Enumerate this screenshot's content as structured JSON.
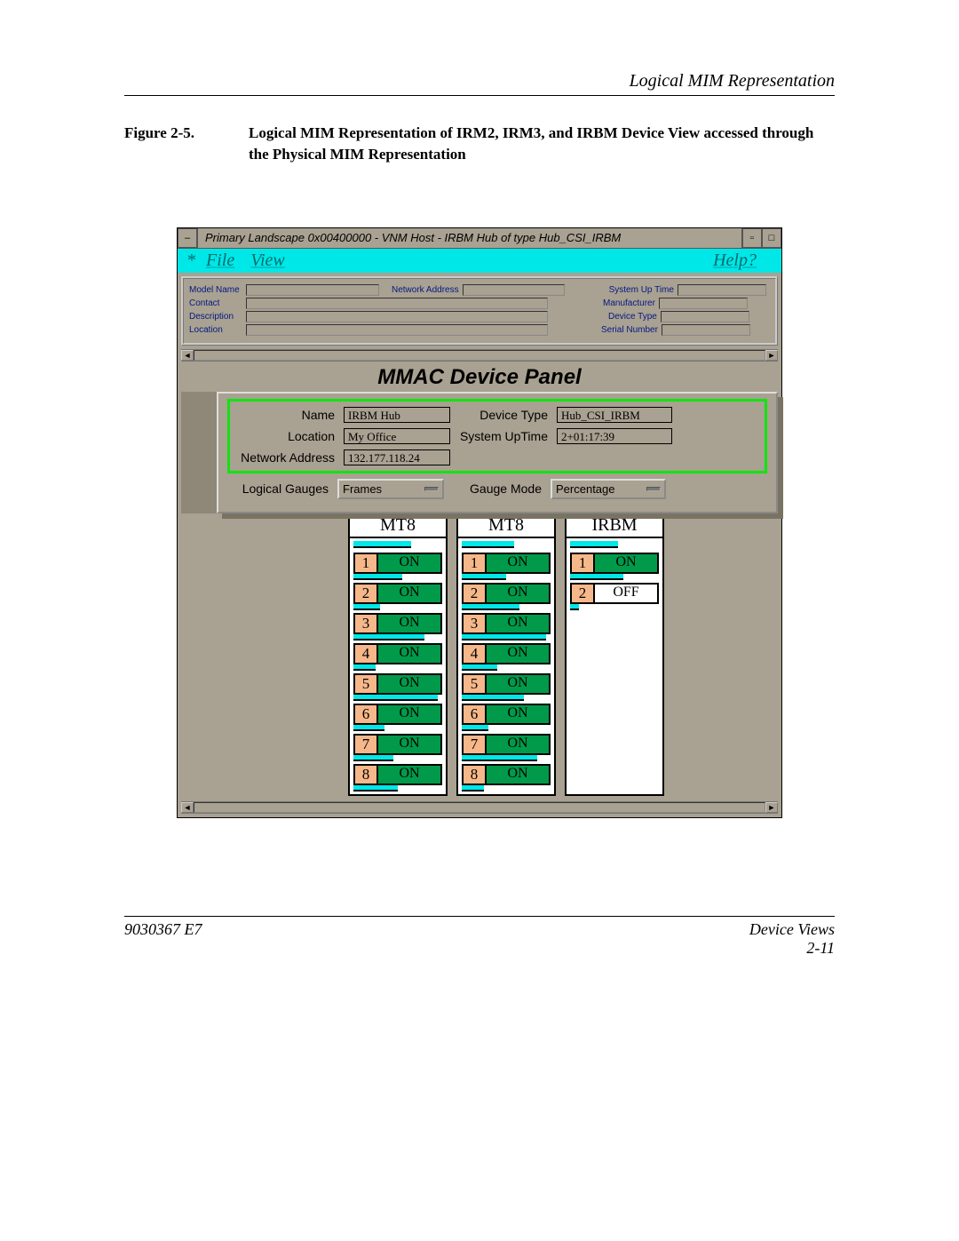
{
  "page": {
    "section_header": "Logical MIM Representation",
    "figure_label": "Figure 2-5.",
    "figure_text": "Logical MIM Representation of IRM2, IRM3, and IRBM Device View accessed through the Physical MIM Representation",
    "footer_left": "9030367 E7",
    "footer_right_top": "Device Views",
    "footer_right_bottom": "2-11"
  },
  "window": {
    "title": "Primary Landscape 0x00400000 - VNM Host - IRBM Hub of type Hub_CSI_IRBM",
    "menu": {
      "file": "File",
      "view": "View",
      "help": "Help?"
    },
    "info_labels": {
      "model_name": "Model Name",
      "network_address": "Network Address",
      "system_up_time": "System Up Time",
      "contact": "Contact",
      "manufacturer": "Manufacturer",
      "description": "Description",
      "device_type": "Device Type",
      "location": "Location",
      "serial_number": "Serial Number"
    },
    "panel_title": "MMAC Device Panel",
    "info_colors": {
      "label": "#041984"
    },
    "device": {
      "labels": {
        "name": "Name",
        "location": "Location",
        "netaddr": "Network Address",
        "devtype": "Device Type",
        "uptime": "System UpTime"
      },
      "name": "IRBM Hub",
      "location": "My Office",
      "network_address": "132.177.118.24",
      "device_type": "Hub_CSI_IRBM",
      "system_uptime": "2+01:17:39"
    },
    "controls": {
      "logical_gauges_label": "Logical Gauges",
      "logical_gauges_value": "Frames",
      "gauge_mode_label": "Gauge Mode",
      "gauge_mode_value": "Percentage"
    },
    "colors": {
      "menubar_bg": "#00e7e7",
      "menubar_fg": "#006c6c",
      "green_frame": "#12e312",
      "on_bg": "#009a4a",
      "portnum_bg": "#f6b88a",
      "gauge": "#00e7e7",
      "win_bg": "#a9a191"
    },
    "modules": [
      {
        "title": "MT8",
        "header_gauge_pct": 60,
        "ports": [
          {
            "n": "1",
            "state": "ON",
            "on": true,
            "gauge": 55
          },
          {
            "n": "2",
            "state": "ON",
            "on": true,
            "gauge": 30
          },
          {
            "n": "3",
            "state": "ON",
            "on": true,
            "gauge": 80
          },
          {
            "n": "4",
            "state": "ON",
            "on": true,
            "gauge": 25
          },
          {
            "n": "5",
            "state": "ON",
            "on": true,
            "gauge": 95
          },
          {
            "n": "6",
            "state": "ON",
            "on": true,
            "gauge": 35
          },
          {
            "n": "7",
            "state": "ON",
            "on": true,
            "gauge": 45
          },
          {
            "n": "8",
            "state": "ON",
            "on": true,
            "gauge": 50
          }
        ]
      },
      {
        "title": "MT8",
        "header_gauge_pct": 55,
        "ports": [
          {
            "n": "1",
            "state": "ON",
            "on": true,
            "gauge": 50
          },
          {
            "n": "2",
            "state": "ON",
            "on": true,
            "gauge": 65
          },
          {
            "n": "3",
            "state": "ON",
            "on": true,
            "gauge": 95
          },
          {
            "n": "4",
            "state": "ON",
            "on": true,
            "gauge": 40
          },
          {
            "n": "5",
            "state": "ON",
            "on": true,
            "gauge": 70
          },
          {
            "n": "6",
            "state": "ON",
            "on": true,
            "gauge": 30
          },
          {
            "n": "7",
            "state": "ON",
            "on": true,
            "gauge": 85
          },
          {
            "n": "8",
            "state": "ON",
            "on": true,
            "gauge": 25
          }
        ]
      },
      {
        "title": "IRBM",
        "header_gauge_pct": 50,
        "ports": [
          {
            "n": "1",
            "state": "ON",
            "on": true,
            "gauge": 60
          },
          {
            "n": "2",
            "state": "OFF",
            "on": false,
            "gauge": 10
          }
        ]
      }
    ]
  }
}
